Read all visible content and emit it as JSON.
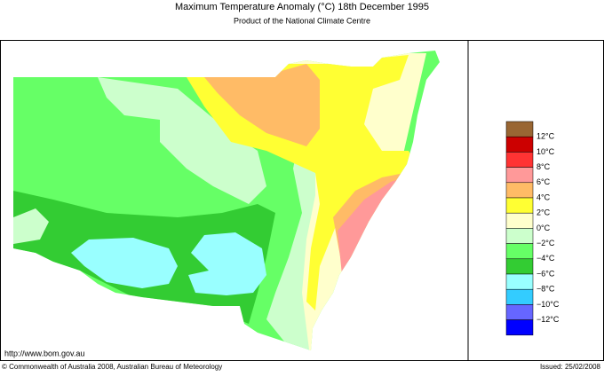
{
  "header": {
    "title": "Maximum Temperature Anomaly (°C)  18th December 1995",
    "subtitle": "Product of the National Climate Centre"
  },
  "legend": {
    "swatches": [
      "#996633",
      "#cc0000",
      "#ff3333",
      "#ff9999",
      "#ffbb66",
      "#ffff33",
      "#ffffcc",
      "#ccffcc",
      "#66ff66",
      "#33cc33",
      "#99ffff",
      "#33ccff",
      "#6666ff",
      "#0000ff"
    ],
    "labels": [
      "12°C",
      "10°C",
      "8°C",
      "6°C",
      "4°C",
      "2°C",
      "0°C",
      "−2°C",
      "−4°C",
      "−6°C",
      "−8°C",
      "−10°C",
      "−12°C"
    ]
  },
  "footer": {
    "url": "http://www.bom.gov.au",
    "copyright": "© Commonwealth of Australia 2008, Australian Bureau of Meteorology",
    "issued": "Issued: 25/02/2008"
  }
}
